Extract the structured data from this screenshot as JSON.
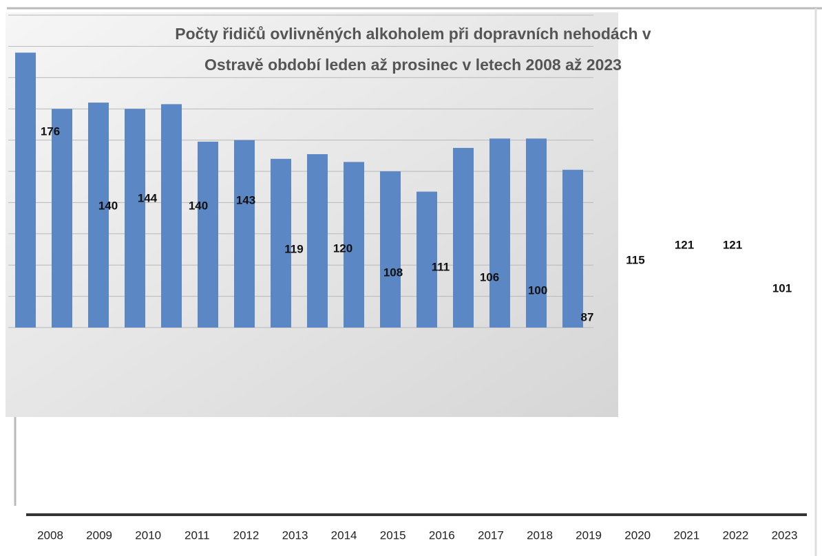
{
  "chart_data": {
    "type": "bar",
    "title": [
      "Počty řidičů ovlivněných alkoholem  při dopravních nehodách v",
      "Ostravě období leden až prosinec v letech 2008 až 2023"
    ],
    "categories": [
      "2008",
      "2009",
      "2010",
      "2011",
      "2012",
      "2013",
      "2014",
      "2015",
      "2016",
      "2017",
      "2018",
      "2019",
      "2020",
      "2021",
      "2022",
      "2023"
    ],
    "values": [
      176,
      140,
      144,
      140,
      143,
      119,
      120,
      108,
      111,
      106,
      100,
      87,
      115,
      121,
      121,
      101
    ],
    "color": "#5b87c4",
    "ylim": [
      0,
      200
    ],
    "yticks": [
      0,
      20,
      40,
      60,
      80,
      100,
      120,
      140,
      160,
      180,
      200
    ],
    "grid": true
  }
}
